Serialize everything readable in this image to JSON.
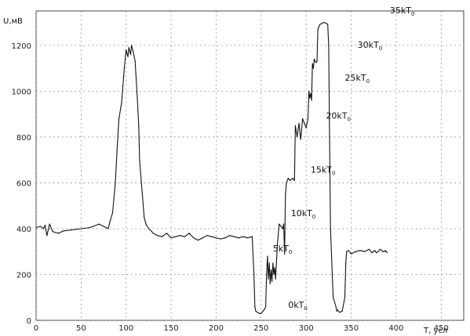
{
  "chart_data": {
    "type": "line",
    "ylabel": "U,мВ",
    "xlabel": "T, усл",
    "xlim": [
      0,
      475
    ],
    "ylim": [
      0,
      1350
    ],
    "x_ticks": [
      0,
      50,
      100,
      150,
      200,
      250,
      300,
      350,
      400,
      450
    ],
    "x_tick_labels": [
      "0",
      "50",
      "100",
      "150",
      "200",
      "250",
      "300",
      "350",
      "400",
      "450"
    ],
    "y_ticks": [
      0,
      200,
      400,
      600,
      800,
      1000,
      1200
    ],
    "y_tick_labels": [
      "0",
      "200",
      "400",
      "600",
      "800",
      "1000",
      "1200"
    ],
    "grid": true,
    "grid_style": "dotted",
    "annotations": [
      {
        "base": "0kT",
        "sub": "0",
        "x": 280,
        "y": 55
      },
      {
        "base": "5kT",
        "sub": "0",
        "x": 263,
        "y": 300
      },
      {
        "base": "10kT",
        "sub": "0",
        "x": 283,
        "y": 455
      },
      {
        "base": "15kT",
        "sub": "0",
        "x": 305,
        "y": 645
      },
      {
        "base": "20kT",
        "sub": "0",
        "x": 322,
        "y": 880
      },
      {
        "base": "25kT",
        "sub": "0",
        "x": 343,
        "y": 1045
      },
      {
        "base": "30kT",
        "sub": "0",
        "x": 357,
        "y": 1190
      },
      {
        "base": "35kT",
        "sub": "0",
        "x": 393,
        "y": 1340
      }
    ],
    "series": [
      {
        "color": "#111111",
        "x": [
          0,
          5,
          8,
          10,
          12,
          15,
          18,
          20,
          25,
          30,
          40,
          50,
          60,
          70,
          75,
          80,
          82,
          85,
          88,
          90,
          92,
          95,
          98,
          100,
          102,
          103,
          105,
          106,
          108,
          110,
          112,
          114,
          115,
          118,
          120,
          122,
          125,
          128,
          130,
          135,
          140,
          145,
          150,
          155,
          160,
          165,
          170,
          175,
          180,
          185,
          190,
          195,
          200,
          205,
          210,
          215,
          220,
          225,
          230,
          235,
          240,
          242,
          243,
          244,
          246,
          248,
          250,
          252,
          254,
          255,
          256,
          257,
          258,
          259,
          260,
          261,
          262,
          263,
          264,
          265,
          266,
          268,
          270,
          272,
          274,
          275,
          276,
          277,
          278,
          280,
          282,
          285,
          287,
          288,
          290,
          292,
          294,
          296,
          298,
          300,
          302,
          303,
          304,
          305,
          306,
          307,
          308,
          309,
          310,
          311,
          312,
          313,
          314,
          315,
          317,
          320,
          323,
          324,
          325,
          326,
          327,
          330,
          333,
          334,
          335,
          337,
          340,
          343,
          344,
          345,
          347,
          350,
          355,
          360,
          365,
          370,
          372,
          373,
          375,
          376,
          377,
          378,
          380,
          382,
          384,
          385,
          387,
          388,
          389,
          390
        ],
        "y": [
          405,
          410,
          400,
          415,
          370,
          420,
          390,
          385,
          380,
          390,
          395,
          400,
          405,
          420,
          410,
          400,
          430,
          470,
          600,
          750,
          880,
          950,
          1100,
          1180,
          1150,
          1190,
          1160,
          1200,
          1170,
          1130,
          1000,
          850,
          700,
          550,
          450,
          420,
          400,
          390,
          380,
          370,
          365,
          380,
          360,
          365,
          370,
          365,
          380,
          360,
          350,
          360,
          370,
          365,
          360,
          355,
          360,
          370,
          365,
          360,
          365,
          360,
          365,
          200,
          60,
          40,
          35,
          30,
          30,
          40,
          50,
          60,
          200,
          280,
          180,
          250,
          160,
          220,
          170,
          250,
          200,
          230,
          180,
          330,
          420,
          410,
          400,
          420,
          290,
          550,
          600,
          620,
          610,
          620,
          610,
          850,
          800,
          860,
          790,
          880,
          860,
          840,
          880,
          1000,
          970,
          990,
          960,
          1120,
          1100,
          1140,
          1130,
          1125,
          1130,
          1270,
          1280,
          1290,
          1295,
          1300,
          1295,
          1290,
          1200,
          800,
          400,
          100,
          60,
          40,
          45,
          35,
          40,
          100,
          250,
          300,
          305,
          290,
          300,
          305,
          300,
          310,
          300,
          295,
          300,
          305,
          300,
          295,
          300,
          310,
          305,
          300,
          300,
          305,
          300,
          295
        ]
      }
    ]
  }
}
